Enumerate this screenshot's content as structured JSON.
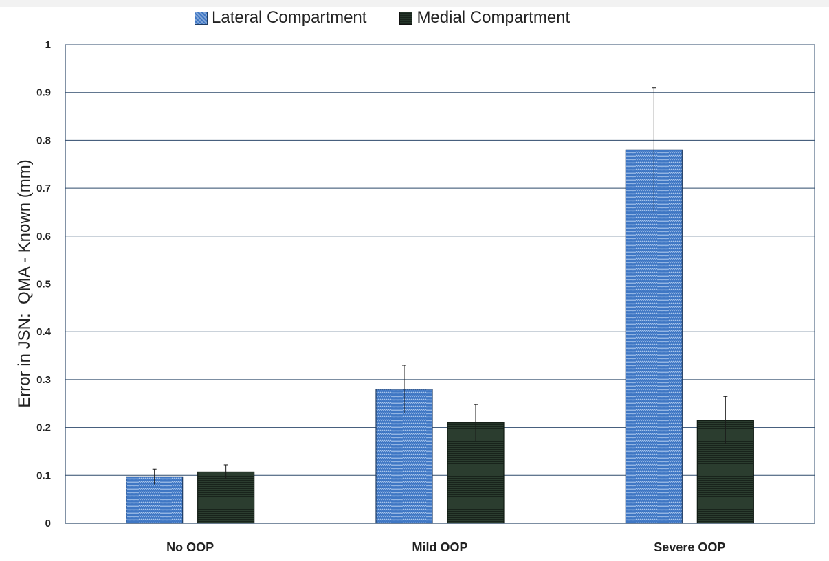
{
  "chart_data": {
    "type": "bar",
    "title": "",
    "xlabel": "",
    "ylabel": "Error in JSN:  QMA - Known (mm)",
    "ylim": [
      0,
      1
    ],
    "yticks": [
      "0",
      "0.1",
      "0.2",
      "0.3",
      "0.4",
      "0.5",
      "0.6",
      "0.7",
      "0.8",
      "0.9",
      "1"
    ],
    "categories": [
      "No OOP",
      "Mild OOP",
      "Severe OOP"
    ],
    "series": [
      {
        "name": "Lateral Compartment",
        "values": [
          0.097,
          0.28,
          0.78
        ],
        "error": [
          0.016,
          0.05,
          0.13
        ],
        "color": "#3f77c4",
        "pattern": "zigzag"
      },
      {
        "name": "Medial Compartment",
        "values": [
          0.107,
          0.21,
          0.215
        ],
        "error": [
          0.015,
          0.038,
          0.05
        ],
        "color": "#25362a",
        "pattern": "horizontal-lines"
      }
    ],
    "grid": "horizontal",
    "legend_position": "top"
  }
}
